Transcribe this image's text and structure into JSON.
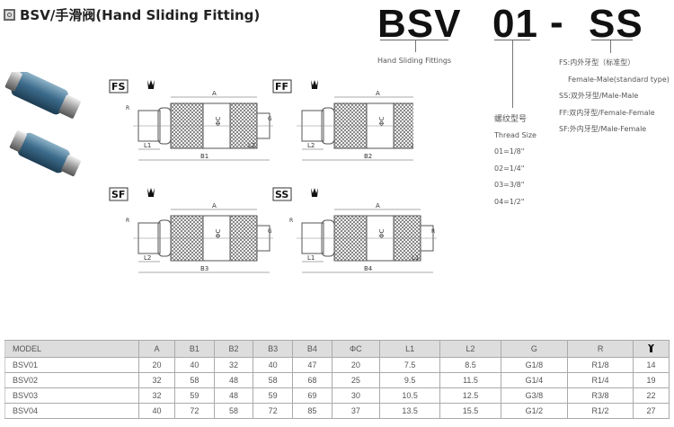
{
  "header": {
    "title": "BSV/手滑阀(Hand Sliding Fitting)",
    "icon": "square-target-icon"
  },
  "code": {
    "series": "BSV",
    "size": "01",
    "dash": "-",
    "type": "SS",
    "series_desc": "Hand Sliding Fittings",
    "thread_cn": "螺纹型号",
    "thread_en": "Thread Size",
    "threads": [
      "01=1/8\"",
      "02=1/4\"",
      "03=3/8\"",
      "04=1/2\""
    ],
    "types": [
      "FS:内外牙型（标准型）",
      "Female-Male(standard type)",
      "SS:双外牙型/Male-Male",
      "FF:双内牙型/Female-Female",
      "SF:外内牙型/Male-Female"
    ]
  },
  "diagrams": [
    {
      "tag": "FS",
      "labels": {
        "a": "A",
        "b": "B1",
        "l1": "L1",
        "l2": "L2",
        "r": "R",
        "g": "G",
        "c": "ΦC"
      }
    },
    {
      "tag": "FF",
      "labels": {
        "a": "A",
        "b": "B2",
        "l1": "L2",
        "l2": "L2",
        "r": "",
        "g": "G",
        "c": "ΦC"
      }
    },
    {
      "tag": "SF",
      "labels": {
        "a": "A",
        "b": "B3",
        "l1": "L2",
        "l2": "",
        "r": "R",
        "g": "G",
        "c": "ΦC"
      }
    },
    {
      "tag": "SS",
      "labels": {
        "a": "A",
        "b": "B4",
        "l1": "L1",
        "l2": "L1",
        "r": "R",
        "g": "R",
        "c": "ΦC"
      }
    }
  ],
  "table": {
    "headers": [
      "MODEL",
      "A",
      "B1",
      "B2",
      "B3",
      "B4",
      "ΦC",
      "L1",
      "L2",
      "G",
      "R",
      "wrench-icon"
    ],
    "rows": [
      [
        "BSV01",
        "20",
        "40",
        "32",
        "40",
        "47",
        "20",
        "7.5",
        "8.5",
        "G1/8",
        "R1/8",
        "14"
      ],
      [
        "BSV02",
        "32",
        "58",
        "48",
        "58",
        "68",
        "25",
        "9.5",
        "11.5",
        "G1/4",
        "R1/4",
        "19"
      ],
      [
        "BSV03",
        "32",
        "59",
        "48",
        "59",
        "69",
        "30",
        "10.5",
        "12.5",
        "G3/8",
        "R3/8",
        "22"
      ],
      [
        "BSV04",
        "40",
        "72",
        "58",
        "72",
        "85",
        "37",
        "13.5",
        "15.5",
        "G1/2",
        "R1/2",
        "27"
      ]
    ]
  },
  "colors": {
    "fitting_blue": "#3d6c8c",
    "header_bg": "#dddddd"
  }
}
